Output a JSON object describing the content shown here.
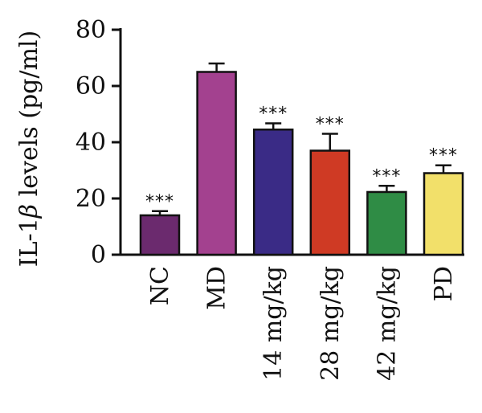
{
  "chart_data": {
    "type": "bar",
    "title": "",
    "xlabel": "",
    "ylabel_prefix": "IL-1",
    "ylabel_symbol": "β",
    "ylabel_suffix": " levels (pg/ml)",
    "ylim": [
      0,
      80
    ],
    "yticks": [
      "0",
      "20",
      "40",
      "60",
      "80"
    ],
    "categories": [
      "NC",
      "MD",
      "14 mg/kg",
      "28 mg/kg",
      "42 mg/kg",
      "PD"
    ],
    "values": [
      14,
      65,
      44.5,
      37,
      22.3,
      29
    ],
    "errors": [
      1.5,
      3,
      2.2,
      6,
      2.2,
      2.8
    ],
    "significance": [
      "***",
      "",
      "***",
      "***",
      "***",
      "***"
    ],
    "colors": [
      "#6b2a6e",
      "#a3418f",
      "#3a2b86",
      "#cf3a24",
      "#2f8c45",
      "#f2e06a"
    ],
    "grid": false,
    "legend": "none"
  }
}
